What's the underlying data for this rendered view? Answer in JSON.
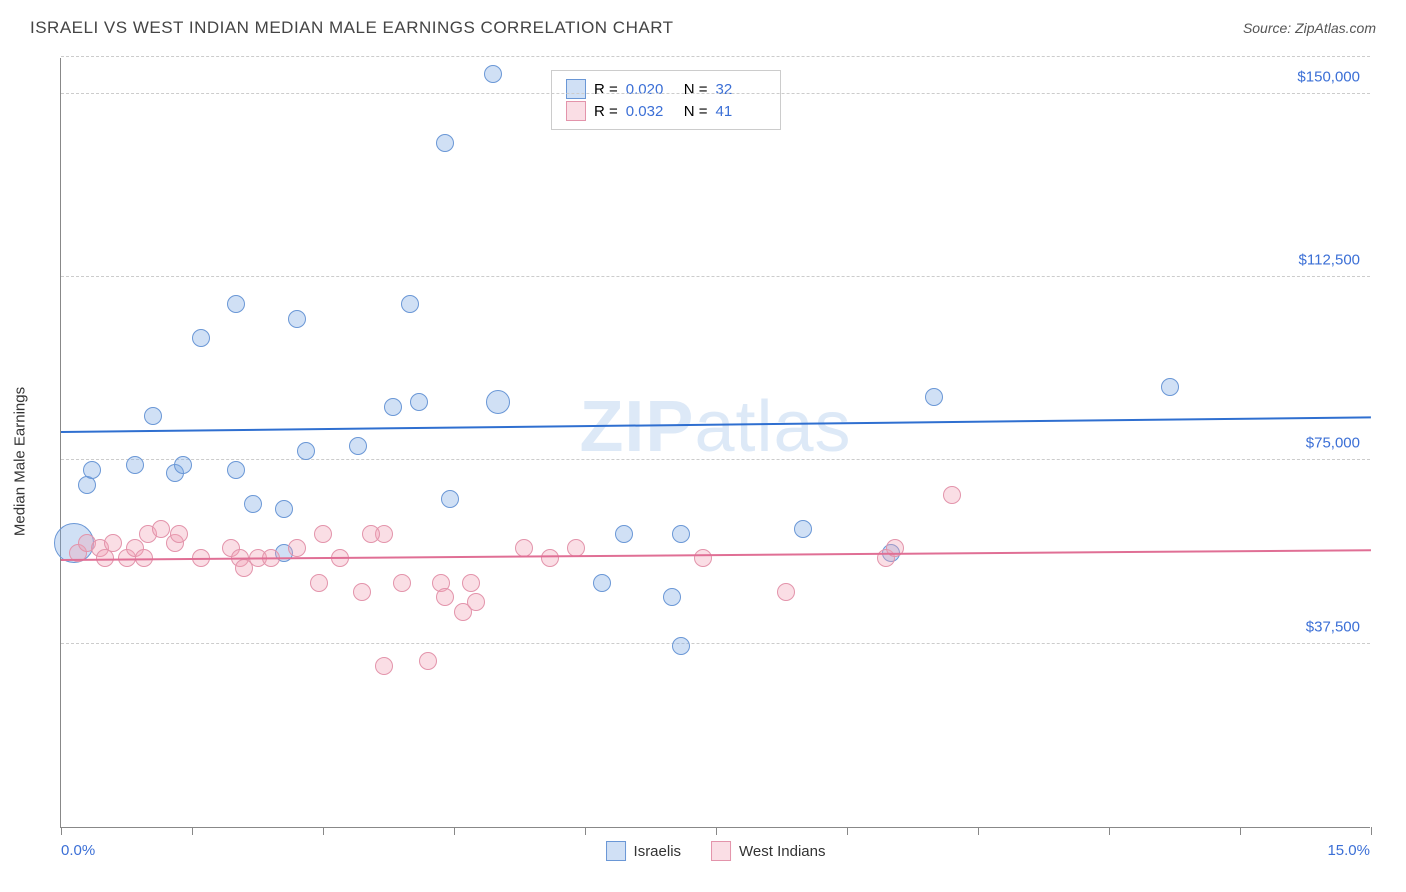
{
  "title": "ISRAELI VS WEST INDIAN MEDIAN MALE EARNINGS CORRELATION CHART",
  "source_label": "Source: ZipAtlas.com",
  "watermark": {
    "bold": "ZIP",
    "rest": "atlas"
  },
  "yaxis_label": "Median Male Earnings",
  "chart": {
    "type": "scatter",
    "xlim": [
      0,
      15
    ],
    "ylim": [
      0,
      157500
    ],
    "x_ticks": [
      0,
      1.5,
      3,
      4.5,
      6,
      7.5,
      9,
      10.5,
      12,
      13.5,
      15
    ],
    "x_tick_labels": {
      "first": "0.0%",
      "last": "15.0%"
    },
    "y_gridlines": [
      37500,
      75000,
      112500,
      150000
    ],
    "y_tick_labels": [
      "$37,500",
      "$75,000",
      "$112,500",
      "$150,000"
    ],
    "grid_color": "#cccccc",
    "axis_color": "#888888",
    "background_color": "#ffffff",
    "label_color": "#3b6fd6",
    "marker_radius": 9,
    "series": [
      {
        "name": "Israelis",
        "fill": "rgba(120,165,225,0.35)",
        "stroke": "#6a97d6",
        "trend_color": "#2f6fd0",
        "trend": {
          "y_at_xmin": 80500,
          "y_at_xmax": 83500
        },
        "R": "0.020",
        "N": "32",
        "points": [
          {
            "x": 0.15,
            "y": 58000,
            "r": 20
          },
          {
            "x": 0.3,
            "y": 70000
          },
          {
            "x": 0.35,
            "y": 73000
          },
          {
            "x": 0.85,
            "y": 74000
          },
          {
            "x": 1.05,
            "y": 84000
          },
          {
            "x": 1.3,
            "y": 72500
          },
          {
            "x": 1.4,
            "y": 74000
          },
          {
            "x": 1.6,
            "y": 100000
          },
          {
            "x": 2.0,
            "y": 107000
          },
          {
            "x": 2.0,
            "y": 73000
          },
          {
            "x": 2.2,
            "y": 66000
          },
          {
            "x": 2.55,
            "y": 65000
          },
          {
            "x": 2.55,
            "y": 56000
          },
          {
            "x": 2.7,
            "y": 104000
          },
          {
            "x": 2.8,
            "y": 77000
          },
          {
            "x": 3.4,
            "y": 78000
          },
          {
            "x": 3.8,
            "y": 86000
          },
          {
            "x": 4.0,
            "y": 107000
          },
          {
            "x": 4.1,
            "y": 87000
          },
          {
            "x": 4.4,
            "y": 140000
          },
          {
            "x": 4.45,
            "y": 67000
          },
          {
            "x": 4.95,
            "y": 154000
          },
          {
            "x": 5.0,
            "y": 87000,
            "r": 12
          },
          {
            "x": 6.2,
            "y": 50000
          },
          {
            "x": 6.45,
            "y": 60000
          },
          {
            "x": 7.0,
            "y": 47000
          },
          {
            "x": 7.1,
            "y": 37000
          },
          {
            "x": 7.1,
            "y": 60000
          },
          {
            "x": 8.5,
            "y": 61000
          },
          {
            "x": 9.5,
            "y": 56000
          },
          {
            "x": 10.0,
            "y": 88000
          },
          {
            "x": 12.7,
            "y": 90000
          }
        ]
      },
      {
        "name": "West Indians",
        "fill": "rgba(240,160,180,0.35)",
        "stroke": "#e394ab",
        "trend_color": "#e06f95",
        "trend": {
          "y_at_xmin": 54500,
          "y_at_xmax": 56500
        },
        "R": "0.032",
        "N": "41",
        "points": [
          {
            "x": 0.2,
            "y": 56000
          },
          {
            "x": 0.3,
            "y": 58000
          },
          {
            "x": 0.45,
            "y": 57000
          },
          {
            "x": 0.5,
            "y": 55000
          },
          {
            "x": 0.6,
            "y": 58000
          },
          {
            "x": 0.75,
            "y": 55000
          },
          {
            "x": 0.85,
            "y": 57000
          },
          {
            "x": 0.95,
            "y": 55000
          },
          {
            "x": 1.0,
            "y": 60000
          },
          {
            "x": 1.15,
            "y": 61000
          },
          {
            "x": 1.3,
            "y": 58000
          },
          {
            "x": 1.35,
            "y": 60000
          },
          {
            "x": 1.6,
            "y": 55000
          },
          {
            "x": 1.95,
            "y": 57000
          },
          {
            "x": 2.05,
            "y": 55000
          },
          {
            "x": 2.1,
            "y": 53000
          },
          {
            "x": 2.25,
            "y": 55000
          },
          {
            "x": 2.4,
            "y": 55000
          },
          {
            "x": 2.7,
            "y": 57000
          },
          {
            "x": 2.95,
            "y": 50000
          },
          {
            "x": 3.0,
            "y": 60000
          },
          {
            "x": 3.2,
            "y": 55000
          },
          {
            "x": 3.45,
            "y": 48000
          },
          {
            "x": 3.7,
            "y": 60000
          },
          {
            "x": 3.7,
            "y": 33000
          },
          {
            "x": 3.9,
            "y": 50000
          },
          {
            "x": 4.2,
            "y": 34000
          },
          {
            "x": 4.35,
            "y": 50000
          },
          {
            "x": 4.4,
            "y": 47000
          },
          {
            "x": 4.6,
            "y": 44000
          },
          {
            "x": 4.7,
            "y": 50000
          },
          {
            "x": 4.75,
            "y": 46000
          },
          {
            "x": 5.3,
            "y": 57000
          },
          {
            "x": 5.6,
            "y": 55000
          },
          {
            "x": 5.9,
            "y": 57000
          },
          {
            "x": 7.35,
            "y": 55000
          },
          {
            "x": 8.3,
            "y": 48000
          },
          {
            "x": 9.45,
            "y": 55000
          },
          {
            "x": 9.55,
            "y": 57000
          },
          {
            "x": 10.2,
            "y": 68000
          },
          {
            "x": 3.55,
            "y": 60000
          }
        ]
      }
    ]
  },
  "legend_top": {
    "rows": [
      {
        "swatch_fill": "rgba(120,165,225,0.35)",
        "swatch_stroke": "#6a97d6",
        "R_label": "R =",
        "R": "0.020",
        "N_label": "N =",
        "N": "32"
      },
      {
        "swatch_fill": "rgba(240,160,180,0.35)",
        "swatch_stroke": "#e394ab",
        "R_label": "R =",
        "R": "0.032",
        "N_label": "N =",
        "N": "41"
      }
    ]
  },
  "legend_bottom": [
    {
      "swatch_fill": "rgba(120,165,225,0.35)",
      "swatch_stroke": "#6a97d6",
      "label": "Israelis"
    },
    {
      "swatch_fill": "rgba(240,160,180,0.35)",
      "swatch_stroke": "#e394ab",
      "label": "West Indians"
    }
  ]
}
